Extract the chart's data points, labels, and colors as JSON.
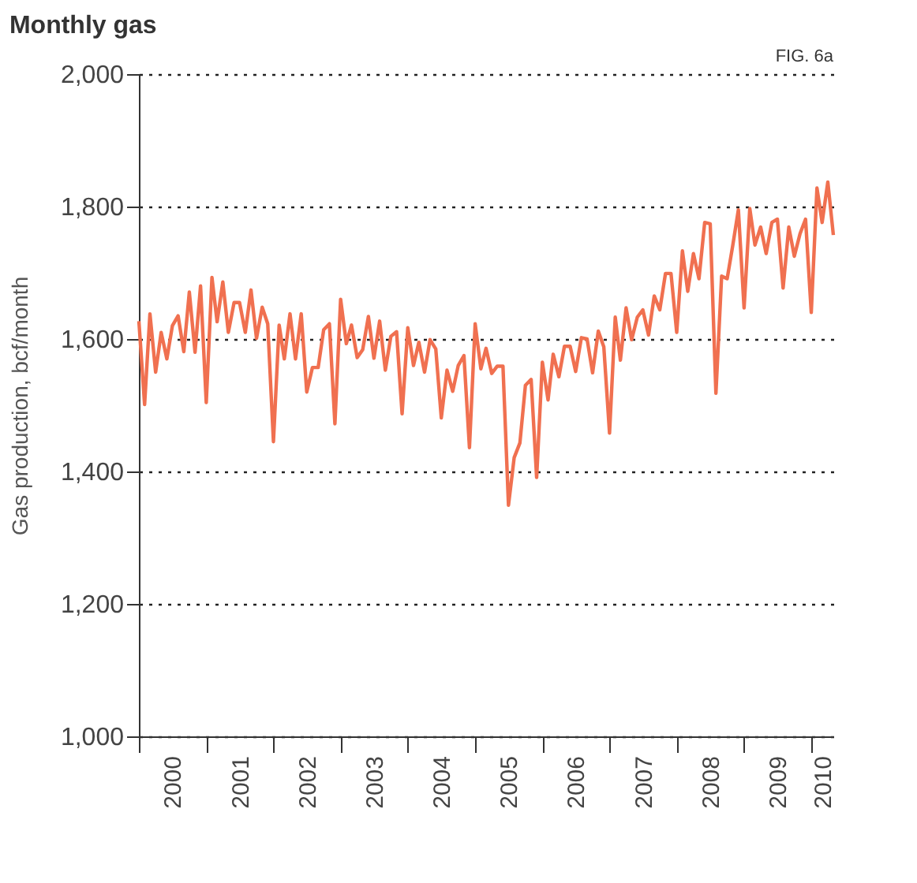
{
  "chart_data": {
    "type": "line",
    "title": "Monthly gas",
    "ylabel": "Gas production, bcf/month",
    "annotations": [
      "FIG. 6a"
    ],
    "x": [
      "2000-01",
      "2000-02",
      "2000-03",
      "2000-04",
      "2000-05",
      "2000-06",
      "2000-07",
      "2000-08",
      "2000-09",
      "2000-10",
      "2000-11",
      "2000-12",
      "2001-01",
      "2001-02",
      "2001-03",
      "2001-04",
      "2001-05",
      "2001-06",
      "2001-07",
      "2001-08",
      "2001-09",
      "2001-10",
      "2001-11",
      "2001-12",
      "2002-01",
      "2002-02",
      "2002-03",
      "2002-04",
      "2002-05",
      "2002-06",
      "2002-07",
      "2002-08",
      "2002-09",
      "2002-10",
      "2002-11",
      "2002-12",
      "2003-01",
      "2003-02",
      "2003-03",
      "2003-04",
      "2003-05",
      "2003-06",
      "2003-07",
      "2003-08",
      "2003-09",
      "2003-10",
      "2003-11",
      "2003-12",
      "2004-01",
      "2004-02",
      "2004-03",
      "2004-04",
      "2004-05",
      "2004-06",
      "2004-07",
      "2004-08",
      "2004-09",
      "2004-10",
      "2004-11",
      "2004-12",
      "2005-01",
      "2005-02",
      "2005-03",
      "2005-04",
      "2005-05",
      "2005-06",
      "2005-07",
      "2005-08",
      "2005-09",
      "2005-10",
      "2005-11",
      "2005-12",
      "2006-01",
      "2006-02",
      "2006-03",
      "2006-04",
      "2006-05",
      "2006-06",
      "2006-07",
      "2006-08",
      "2006-09",
      "2006-10",
      "2006-11",
      "2006-12",
      "2007-01",
      "2007-02",
      "2007-03",
      "2007-04",
      "2007-05",
      "2007-06",
      "2007-07",
      "2007-08",
      "2007-09",
      "2007-10",
      "2007-11",
      "2007-12",
      "2008-01",
      "2008-02",
      "2008-03",
      "2008-04",
      "2008-05",
      "2008-06",
      "2008-07",
      "2008-08",
      "2008-09",
      "2008-10",
      "2008-11",
      "2008-12",
      "2009-01",
      "2009-02",
      "2009-03",
      "2009-04",
      "2009-05",
      "2009-06",
      "2009-07",
      "2009-08",
      "2009-09",
      "2009-10",
      "2009-11",
      "2009-12",
      "2010-01",
      "2010-02",
      "2010-03",
      "2010-04",
      "2010-05"
    ],
    "series": [
      {
        "color": "#f07050",
        "values": [
          1627,
          1501,
          1638,
          1550,
          1610,
          1570,
          1620,
          1635,
          1581,
          1671,
          1580,
          1680,
          1504,
          1693,
          1626,
          1686,
          1610,
          1655,
          1655,
          1610,
          1674,
          1601,
          1648,
          1623,
          1445,
          1621,
          1570,
          1638,
          1570,
          1638,
          1520,
          1557,
          1557,
          1614,
          1623,
          1472,
          1660,
          1593,
          1621,
          1572,
          1584,
          1634,
          1571,
          1627,
          1553,
          1604,
          1611,
          1487,
          1617,
          1560,
          1595,
          1550,
          1599,
          1585,
          1481,
          1553,
          1521,
          1560,
          1575,
          1436,
          1623,
          1555,
          1586,
          1548,
          1559,
          1559,
          1349,
          1421,
          1443,
          1530,
          1539,
          1391,
          1565,
          1508,
          1577,
          1543,
          1589,
          1589,
          1551,
          1602,
          1600,
          1549,
          1612,
          1588,
          1458,
          1633,
          1568,
          1647,
          1599,
          1633,
          1644,
          1606,
          1665,
          1644,
          1699,
          1699,
          1610,
          1733,
          1672,
          1729,
          1691,
          1776,
          1774,
          1518,
          1695,
          1691,
          1742,
          1795,
          1647,
          1797,
          1742,
          1769,
          1729,
          1776,
          1781,
          1677,
          1769,
          1725,
          1759,
          1781,
          1640,
          1828,
          1776,
          1837,
          1757
        ]
      }
    ],
    "xlim": [
      "2000-01",
      "2010-05"
    ],
    "xticks": [
      {
        "value": "2000-01",
        "label": null
      },
      {
        "value": "2000-07",
        "label": "2000"
      },
      {
        "value": "2001-01",
        "label": null
      },
      {
        "value": "2001-07",
        "label": "2001"
      },
      {
        "value": "2002-01",
        "label": null
      },
      {
        "value": "2002-07",
        "label": "2002"
      },
      {
        "value": "2003-01",
        "label": null
      },
      {
        "value": "2003-07",
        "label": "2003"
      },
      {
        "value": "2004-01",
        "label": null
      },
      {
        "value": "2004-07",
        "label": "2004"
      },
      {
        "value": "2005-01",
        "label": null
      },
      {
        "value": "2005-07",
        "label": "2005"
      },
      {
        "value": "2006-01",
        "label": null
      },
      {
        "value": "2006-07",
        "label": "2006"
      },
      {
        "value": "2007-01",
        "label": null
      },
      {
        "value": "2007-07",
        "label": "2007"
      },
      {
        "value": "2008-01",
        "label": null
      },
      {
        "value": "2008-07",
        "label": "2008"
      },
      {
        "value": "2009-01",
        "label": null
      },
      {
        "value": "2009-07",
        "label": "2009"
      },
      {
        "value": "2010-01",
        "label": null
      },
      {
        "value": "2010-03",
        "label": "2010"
      }
    ],
    "ylim": [
      1000,
      2000
    ],
    "yticks": [
      {
        "value": 1000,
        "label": "1,000"
      },
      {
        "value": 1200,
        "label": "1,200"
      },
      {
        "value": 1400,
        "label": "1,400"
      },
      {
        "value": 1600,
        "label": "1,600"
      },
      {
        "value": 1800,
        "label": "1,800"
      },
      {
        "value": 2000,
        "label": "2,000"
      }
    ],
    "grid": "y",
    "marker": "none",
    "line_style": "solid"
  }
}
